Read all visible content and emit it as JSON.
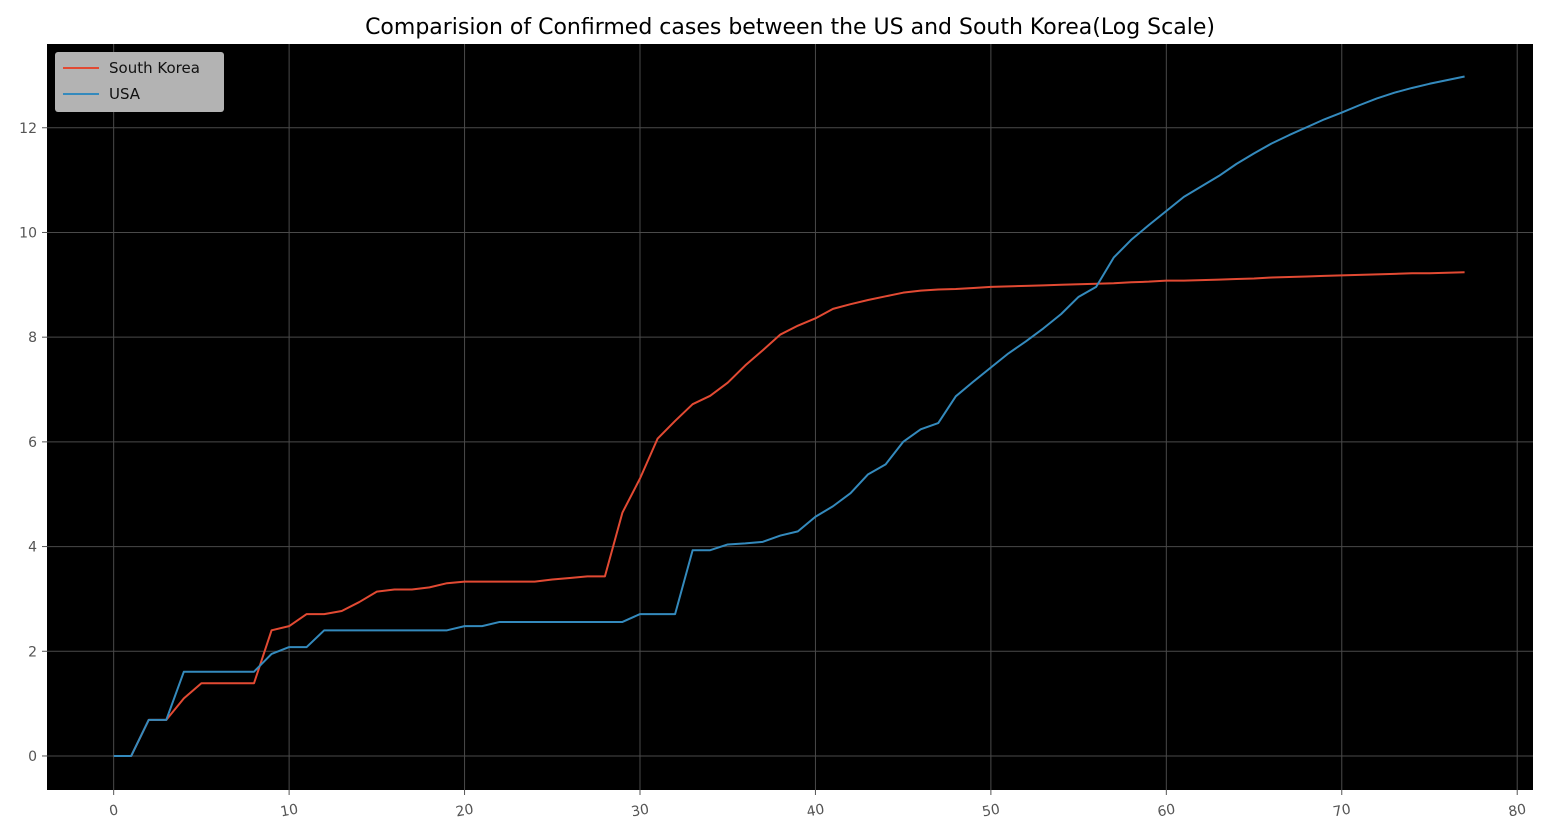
{
  "colors": {
    "page_background": "#ffffff",
    "plot_background": "#000000",
    "grid": "#4a4a4a",
    "tick_text": "#555555",
    "legend_background": "#b3b3b3"
  },
  "chart_data": {
    "type": "line",
    "title": "Comparision of Confirmed cases between the US and South Korea(Log Scale)",
    "xlabel": "",
    "ylabel": "",
    "xlim": [
      -3.8,
      80.9
    ],
    "ylim": [
      -0.65,
      13.6
    ],
    "x_ticks": [
      0,
      10,
      20,
      30,
      40,
      50,
      60,
      70,
      80
    ],
    "y_ticks": [
      0,
      2,
      4,
      6,
      8,
      10,
      12
    ],
    "x_tick_rotation_deg": 10,
    "grid": true,
    "legend": "top-left",
    "x": [
      0,
      1,
      2,
      3,
      4,
      5,
      6,
      7,
      8,
      9,
      10,
      11,
      12,
      13,
      14,
      15,
      16,
      17,
      18,
      19,
      20,
      21,
      22,
      23,
      24,
      25,
      26,
      27,
      28,
      29,
      30,
      31,
      32,
      33,
      34,
      35,
      36,
      37,
      38,
      39,
      40,
      41,
      42,
      43,
      44,
      45,
      46,
      47,
      48,
      49,
      50,
      51,
      52,
      53,
      54,
      55,
      56,
      57,
      58,
      59,
      60,
      61,
      62,
      63,
      64,
      65,
      66,
      67,
      68,
      69,
      70,
      71,
      72,
      73,
      74,
      75,
      76,
      77
    ],
    "series": [
      {
        "name": "South Korea",
        "color": "#e24a33",
        "values": [
          0,
          0,
          0.69,
          0.69,
          1.1,
          1.39,
          1.39,
          1.39,
          1.39,
          2.4,
          2.48,
          2.71,
          2.71,
          2.77,
          2.94,
          3.14,
          3.18,
          3.18,
          3.22,
          3.3,
          3.33,
          3.33,
          3.33,
          3.33,
          3.33,
          3.37,
          3.4,
          3.43,
          3.43,
          4.65,
          5.3,
          6.06,
          6.4,
          6.72,
          6.88,
          7.13,
          7.46,
          7.75,
          8.05,
          8.22,
          8.36,
          8.54,
          8.63,
          8.71,
          8.78,
          8.85,
          8.89,
          8.91,
          8.92,
          8.94,
          8.96,
          8.97,
          8.98,
          8.99,
          9.0,
          9.01,
          9.02,
          9.03,
          9.05,
          9.06,
          9.08,
          9.08,
          9.09,
          9.1,
          9.11,
          9.12,
          9.14,
          9.15,
          9.16,
          9.17,
          9.18,
          9.19,
          9.2,
          9.21,
          9.22,
          9.22,
          9.23,
          9.24
        ]
      },
      {
        "name": "USA",
        "color": "#348abd",
        "values": [
          0,
          0,
          0.69,
          0.69,
          1.61,
          1.61,
          1.61,
          1.61,
          1.61,
          1.95,
          2.08,
          2.08,
          2.4,
          2.4,
          2.4,
          2.4,
          2.4,
          2.4,
          2.4,
          2.4,
          2.48,
          2.48,
          2.56,
          2.56,
          2.56,
          2.56,
          2.56,
          2.56,
          2.56,
          2.56,
          2.71,
          2.71,
          2.71,
          3.93,
          3.93,
          4.04,
          4.06,
          4.09,
          4.21,
          4.29,
          4.57,
          4.77,
          5.02,
          5.38,
          5.57,
          6.0,
          6.24,
          6.36,
          6.87,
          7.15,
          7.42,
          7.69,
          7.92,
          8.17,
          8.44,
          8.77,
          8.96,
          9.52,
          9.86,
          10.14,
          10.41,
          10.68,
          10.88,
          11.08,
          11.31,
          11.51,
          11.7,
          11.86,
          12.01,
          12.16,
          12.29,
          12.43,
          12.56,
          12.67,
          12.76,
          12.84,
          12.91,
          12.98
        ]
      }
    ]
  }
}
